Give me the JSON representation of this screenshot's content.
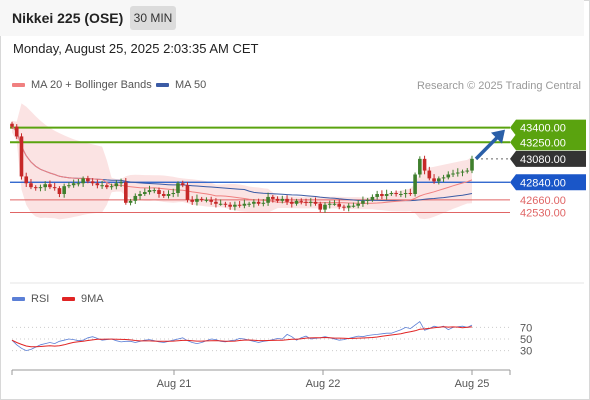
{
  "header": {
    "title": "Nikkei 225 (OSE)",
    "interval": "30 MIN"
  },
  "timestamp": "Monday, August 25, 2025 2:03:35 AM CET",
  "legend": {
    "ma20_bollinger": "MA 20 + Bollinger Bands",
    "ma50": "MA 50",
    "credit": "Research © 2025 Trading Central"
  },
  "rsi_legend": {
    "rsi": "RSI",
    "ma9": "9MA"
  },
  "colors": {
    "resistance": "#5aa30f",
    "pivot": "#1a56c8",
    "support": "#e06565",
    "price_tag": "#333333",
    "arrow": "#2a5fa8",
    "candle_up": "#3f7f2d",
    "candle_down": "#c62828",
    "ma20": "#f08080",
    "ma50": "#3b5ba5",
    "bollinger_fill": "#fbe3e3",
    "rsi_line": "#5b7fd6",
    "rsi_ma": "#e02424"
  },
  "levels": [
    {
      "id": "r2",
      "label": "43400.00",
      "kind": "resistance",
      "value": 43400
    },
    {
      "id": "r1",
      "label": "43250.00",
      "kind": "resistance",
      "value": 43250
    },
    {
      "id": "last",
      "label": "43080.00",
      "kind": "last",
      "value": 43080
    },
    {
      "id": "pivot",
      "label": "42840.00",
      "kind": "pivot",
      "value": 42840
    },
    {
      "id": "s1",
      "label": "42660.00",
      "kind": "support",
      "value": 42660
    },
    {
      "id": "s2",
      "label": "42530.00",
      "kind": "support",
      "value": 42530
    }
  ],
  "rsi_levels": [
    "70",
    "50",
    "30"
  ],
  "x_axis": {
    "labels": [
      "Aug 21",
      "Aug 22",
      "Aug 25"
    ]
  },
  "chart_data": {
    "type": "line",
    "price_scale": {
      "min": 41880,
      "max": 43560
    },
    "closes": [
      43410,
      43310,
      42900,
      42830,
      42790,
      42780,
      42790,
      42820,
      42790,
      42780,
      42720,
      42800,
      42810,
      42830,
      42830,
      42880,
      42850,
      42830,
      42810,
      42810,
      42790,
      42800,
      42830,
      42840,
      42630,
      42650,
      42700,
      42720,
      42740,
      42760,
      42760,
      42720,
      42700,
      42720,
      42730,
      42830,
      42810,
      42660,
      42640,
      42670,
      42660,
      42660,
      42640,
      42620,
      42620,
      42610,
      42590,
      42610,
      42600,
      42620,
      42620,
      42640,
      42620,
      42630,
      42690,
      42670,
      42650,
      42670,
      42640,
      42620,
      42650,
      42640,
      42630,
      42640,
      42620,
      42560,
      42610,
      42620,
      42620,
      42590,
      42580,
      42600,
      42600,
      42620,
      42650,
      42660,
      42690,
      42720,
      42700,
      42720,
      42730,
      42720,
      42720,
      42730,
      42720,
      42920,
      43080,
      42960,
      42880,
      42850,
      42880,
      42890,
      42920,
      42930,
      42940,
      42950,
      42960,
      43080
    ],
    "rsi_scale": {
      "min": 0,
      "max": 100
    },
    "rsi": [
      48,
      40,
      34,
      30,
      32,
      36,
      40,
      42,
      44,
      42,
      46,
      48,
      50,
      49,
      47,
      48,
      52,
      54,
      51,
      48,
      49,
      50,
      47,
      45,
      46,
      46,
      44,
      46,
      48,
      49,
      47,
      45,
      44,
      46,
      48,
      50,
      52,
      47,
      44,
      42,
      44,
      47,
      50,
      49,
      46,
      45,
      47,
      48,
      51,
      50,
      48,
      46,
      44,
      46,
      47,
      49,
      51,
      50,
      58,
      54,
      48,
      52,
      55,
      50,
      51,
      52,
      54,
      52,
      50,
      48,
      49,
      51,
      53,
      55,
      54,
      56,
      57,
      58,
      59,
      60,
      60,
      63,
      66,
      70,
      68,
      74,
      80,
      65,
      68,
      72,
      70,
      72,
      66,
      70,
      71,
      72,
      70,
      74
    ]
  }
}
